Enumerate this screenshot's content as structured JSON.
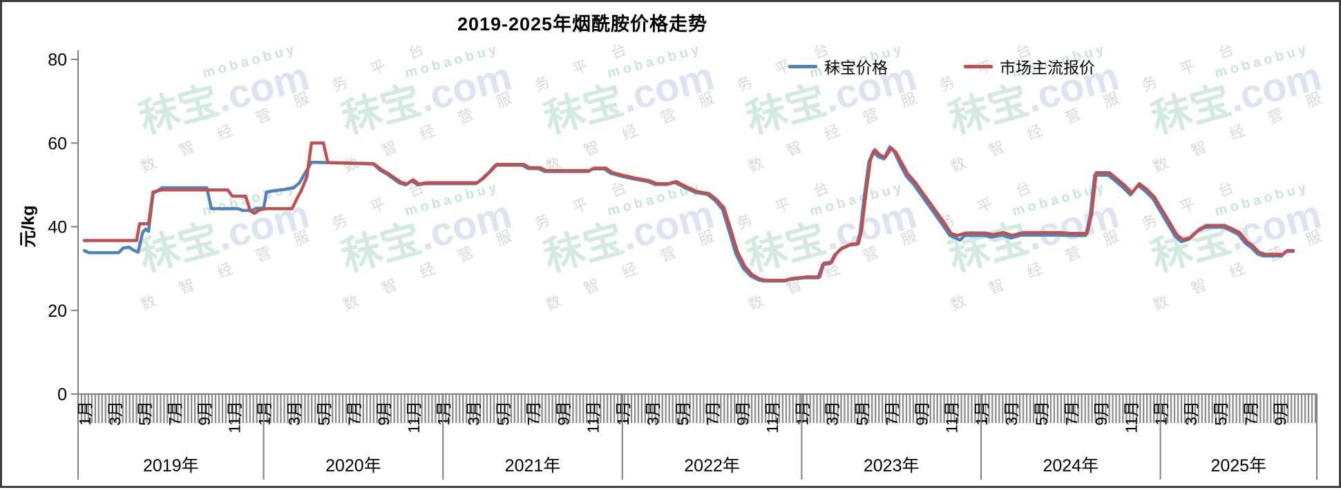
{
  "chart": {
    "title": "2019-2025年烟酰胺价格走势",
    "legend": [
      {
        "label": "秣宝价格",
        "color": "#4F81BD"
      },
      {
        "label": "市场主流报价",
        "color": "#C0504D"
      }
    ]
  },
  "watermark": {
    "brand": "秣宝",
    "suffix": ".com",
    "latin": "mobaobuy",
    "slogan": "数智经营服务平台"
  },
  "chart_data": {
    "type": "line",
    "title": "2019-2025年烟酰胺价格走势",
    "xlabel": "",
    "ylabel": "元/kg",
    "ylim": [
      0,
      80
    ],
    "yticks": [
      0,
      20,
      40,
      60,
      80
    ],
    "grid": false,
    "legend_position": "top",
    "x_encoding": "months since 2019-01 (0 = 2019年1月, weekly steps interpolated)",
    "x_range_months": [
      0,
      82.5
    ],
    "x_tick_labels": [
      "1月",
      "3月",
      "5月",
      "7月",
      "9月",
      "11月"
    ],
    "year_labels": [
      "2019年",
      "2020年",
      "2021年",
      "2022年",
      "2023年",
      "2024年",
      "2025年"
    ],
    "series": [
      {
        "name": "秣宝价格",
        "color": "#4F81BD",
        "points": [
          [
            0,
            34.3
          ],
          [
            0.3,
            33.8
          ],
          [
            2.3,
            33.8
          ],
          [
            2.6,
            34.9
          ],
          [
            3,
            35.1
          ],
          [
            3.3,
            34.4
          ],
          [
            3.6,
            33.9
          ],
          [
            3.9,
            38.6
          ],
          [
            4.1,
            39.4
          ],
          [
            4.3,
            38.9
          ],
          [
            4.6,
            47.9
          ],
          [
            5.2,
            49.3
          ],
          [
            8.2,
            49.3
          ],
          [
            8.5,
            44.3
          ],
          [
            10.3,
            44.3
          ],
          [
            10.6,
            43.9
          ],
          [
            11.2,
            43.9
          ],
          [
            11.5,
            44.4
          ],
          [
            12,
            44.4
          ],
          [
            12.2,
            48.3
          ],
          [
            12.7,
            48.6
          ],
          [
            13.4,
            48.9
          ],
          [
            14,
            49.3
          ],
          [
            14.4,
            50.5
          ],
          [
            14.8,
            53
          ],
          [
            15.2,
            55.4
          ],
          [
            19.3,
            55.1
          ],
          [
            19.8,
            53.5
          ],
          [
            20.2,
            52.7
          ],
          [
            21.1,
            50.4
          ],
          [
            21.5,
            50
          ],
          [
            21.9,
            51
          ],
          [
            22.3,
            50
          ],
          [
            22.8,
            50.3
          ],
          [
            26.2,
            50.3
          ],
          [
            26.6,
            51.4
          ],
          [
            27.1,
            53.1
          ],
          [
            27.5,
            54.7
          ],
          [
            29.3,
            54.7
          ],
          [
            29.7,
            53.9
          ],
          [
            30.4,
            53.9
          ],
          [
            30.8,
            53.2
          ],
          [
            33.7,
            53.2
          ],
          [
            34,
            53.8
          ],
          [
            34.8,
            53.8
          ],
          [
            35.2,
            52.8
          ],
          [
            35.9,
            52.1
          ],
          [
            36.8,
            51.4
          ],
          [
            37.7,
            50.8
          ],
          [
            38.2,
            50.1
          ],
          [
            39,
            50.1
          ],
          [
            39.5,
            50.6
          ],
          [
            40.2,
            49.3
          ],
          [
            40.9,
            48.2
          ],
          [
            41.7,
            47.7
          ],
          [
            42.2,
            46.3
          ],
          [
            42.7,
            44.2
          ],
          [
            43.1,
            39.5
          ],
          [
            43.6,
            33.5
          ],
          [
            44.1,
            30
          ],
          [
            44.6,
            28.2
          ],
          [
            45.1,
            27.3
          ],
          [
            45.5,
            27
          ],
          [
            46.8,
            27
          ],
          [
            47.2,
            27.4
          ],
          [
            48.2,
            27.8
          ],
          [
            49.1,
            27.8
          ],
          [
            49.4,
            31
          ],
          [
            49.9,
            31.2
          ],
          [
            50.2,
            33.2
          ],
          [
            50.6,
            34.6
          ],
          [
            51.2,
            35.6
          ],
          [
            51.7,
            35.8
          ],
          [
            51.9,
            38.5
          ],
          [
            52.2,
            47.5
          ],
          [
            52.5,
            55.5
          ],
          [
            52.8,
            58
          ],
          [
            53.1,
            56.8
          ],
          [
            53.5,
            56.2
          ],
          [
            53.9,
            59.1
          ],
          [
            54.2,
            57.9
          ],
          [
            54.6,
            54.8
          ],
          [
            55,
            52.1
          ],
          [
            55.5,
            50.1
          ],
          [
            55.9,
            48.1
          ],
          [
            56.3,
            46.1
          ],
          [
            56.7,
            44.1
          ],
          [
            57.1,
            42.1
          ],
          [
            57.5,
            40.1
          ],
          [
            57.9,
            37.9
          ],
          [
            58.3,
            37.3
          ],
          [
            58.6,
            36.8
          ],
          [
            58.9,
            37.9
          ],
          [
            60.2,
            37.9
          ],
          [
            60.7,
            37.5
          ],
          [
            61.4,
            38
          ],
          [
            62,
            37.3
          ],
          [
            62.7,
            38
          ],
          [
            65.2,
            38
          ],
          [
            65.9,
            37.9
          ],
          [
            67,
            37.9
          ],
          [
            67.3,
            42.5
          ],
          [
            67.6,
            52.3
          ],
          [
            68.5,
            52.3
          ],
          [
            69,
            50.9
          ],
          [
            69.5,
            49.4
          ],
          [
            70,
            47.6
          ],
          [
            70.5,
            49.9
          ],
          [
            71,
            48.5
          ],
          [
            71.5,
            46.7
          ],
          [
            72,
            43.7
          ],
          [
            72.5,
            40.7
          ],
          [
            73,
            37.7
          ],
          [
            73.4,
            36.4
          ],
          [
            73.9,
            37
          ],
          [
            74.5,
            39
          ],
          [
            75,
            39.9
          ],
          [
            76.2,
            39.9
          ],
          [
            76.7,
            39.1
          ],
          [
            77.2,
            38.2
          ],
          [
            77.7,
            36
          ],
          [
            78.1,
            35
          ],
          [
            78.5,
            33.5
          ],
          [
            78.9,
            33
          ],
          [
            80.1,
            33
          ],
          [
            80.4,
            34.1
          ],
          [
            80.9,
            34.1
          ]
        ]
      },
      {
        "name": "市场主流报价",
        "color": "#C0504D",
        "points": [
          [
            0,
            36.7
          ],
          [
            3.5,
            36.7
          ],
          [
            3.7,
            40.7
          ],
          [
            4.3,
            40.7
          ],
          [
            4.6,
            48.3
          ],
          [
            5.2,
            48.8
          ],
          [
            9.6,
            48.8
          ],
          [
            9.9,
            47.3
          ],
          [
            10.8,
            47.3
          ],
          [
            11.1,
            43.8
          ],
          [
            11.4,
            43.2
          ],
          [
            11.7,
            44
          ],
          [
            12.1,
            44.3
          ],
          [
            13.9,
            44.3
          ],
          [
            14.2,
            46.5
          ],
          [
            14.5,
            48.5
          ],
          [
            14.9,
            52
          ],
          [
            15.2,
            60
          ],
          [
            16,
            60
          ],
          [
            16.3,
            55.3
          ],
          [
            19.4,
            55
          ],
          [
            19.9,
            53.6
          ],
          [
            20.3,
            52.8
          ],
          [
            21.2,
            50.6
          ],
          [
            21.6,
            50.2
          ],
          [
            22,
            51.2
          ],
          [
            22.4,
            50.2
          ],
          [
            22.9,
            50.5
          ],
          [
            26.3,
            50.5
          ],
          [
            26.7,
            51.6
          ],
          [
            27.2,
            53.3
          ],
          [
            27.6,
            54.9
          ],
          [
            29.4,
            54.9
          ],
          [
            29.8,
            54.1
          ],
          [
            30.5,
            54.1
          ],
          [
            30.9,
            53.4
          ],
          [
            33.8,
            53.4
          ],
          [
            34.1,
            54
          ],
          [
            34.9,
            54
          ],
          [
            35.3,
            53
          ],
          [
            36,
            52.3
          ],
          [
            36.9,
            51.6
          ],
          [
            37.8,
            51
          ],
          [
            38.3,
            50.3
          ],
          [
            39.1,
            50.3
          ],
          [
            39.6,
            50.8
          ],
          [
            40.3,
            49.5
          ],
          [
            41,
            48.4
          ],
          [
            41.8,
            47.9
          ],
          [
            42.3,
            46.5
          ],
          [
            42.8,
            44.5
          ],
          [
            43.2,
            40
          ],
          [
            43.7,
            34
          ],
          [
            44.2,
            30.5
          ],
          [
            44.7,
            28.5
          ],
          [
            45.2,
            27.5
          ],
          [
            45.6,
            27.2
          ],
          [
            46.9,
            27.2
          ],
          [
            47.3,
            27.6
          ],
          [
            48.3,
            28
          ],
          [
            49.2,
            28
          ],
          [
            49.5,
            31.3
          ],
          [
            50,
            31.5
          ],
          [
            50.3,
            33.5
          ],
          [
            50.7,
            34.9
          ],
          [
            51.3,
            35.8
          ],
          [
            51.8,
            36
          ],
          [
            52,
            39
          ],
          [
            52.3,
            48
          ],
          [
            52.6,
            56
          ],
          [
            52.9,
            58.4
          ],
          [
            53.2,
            57.2
          ],
          [
            53.6,
            56.6
          ],
          [
            54,
            58.8
          ],
          [
            54.3,
            57.8
          ],
          [
            54.7,
            55.2
          ],
          [
            55.1,
            52.6
          ],
          [
            55.6,
            50.6
          ],
          [
            56,
            48.6
          ],
          [
            56.4,
            46.6
          ],
          [
            56.8,
            44.6
          ],
          [
            57.2,
            42.6
          ],
          [
            57.6,
            40.6
          ],
          [
            58,
            38.4
          ],
          [
            58.4,
            37.9
          ],
          [
            59,
            38.5
          ],
          [
            60.3,
            38.5
          ],
          [
            60.8,
            38.1
          ],
          [
            61.5,
            38.6
          ],
          [
            62.1,
            37.9
          ],
          [
            62.8,
            38.6
          ],
          [
            65.3,
            38.6
          ],
          [
            66,
            38.4
          ],
          [
            67.1,
            38.4
          ],
          [
            67.4,
            43
          ],
          [
            67.7,
            52.9
          ],
          [
            68.6,
            52.9
          ],
          [
            69.1,
            51.4
          ],
          [
            69.6,
            49.9
          ],
          [
            70.1,
            48.1
          ],
          [
            70.6,
            50.3
          ],
          [
            71.1,
            48.9
          ],
          [
            71.6,
            47.1
          ],
          [
            72.1,
            44.1
          ],
          [
            72.6,
            41.1
          ],
          [
            73.1,
            38.1
          ],
          [
            73.5,
            36.9
          ],
          [
            74,
            37.4
          ],
          [
            74.6,
            39.4
          ],
          [
            75.1,
            40.3
          ],
          [
            76.3,
            40.3
          ],
          [
            76.8,
            39.5
          ],
          [
            77.3,
            38.6
          ],
          [
            77.8,
            36.4
          ],
          [
            78.2,
            35.4
          ],
          [
            78.6,
            33.9
          ],
          [
            79,
            33.4
          ],
          [
            80.2,
            33.4
          ],
          [
            80.5,
            34.3
          ],
          [
            80.9,
            34.3
          ]
        ]
      }
    ]
  }
}
